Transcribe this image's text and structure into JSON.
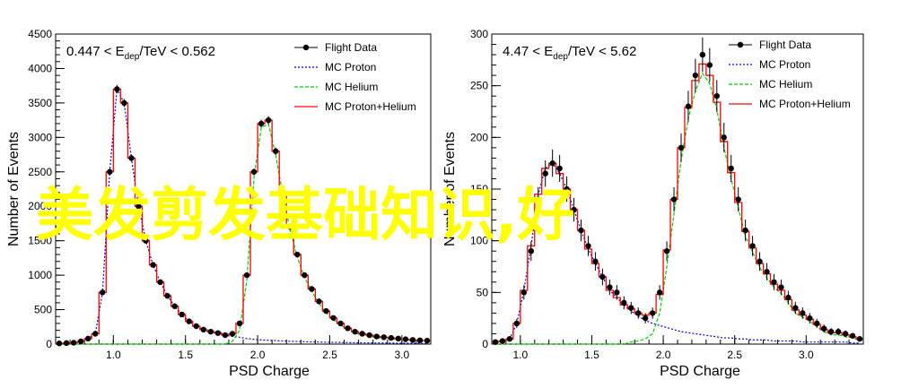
{
  "overlay": {
    "text": "美发剪发基础知识,好",
    "color": "#ffff00"
  },
  "colors": {
    "data": "#000000",
    "proton": "#0000cc",
    "helium": "#00cc00",
    "sum": "#ff0000"
  },
  "chart_data": [
    {
      "type": "line",
      "title": "",
      "range_label": {
        "pre": "0.447 < E",
        "sub": "dep",
        "post": "/TeV < 0.562"
      },
      "xlabel": "PSD Charge",
      "ylabel": "Number of Events",
      "xlim": [
        0.6,
        3.2
      ],
      "ylim": [
        0,
        4500
      ],
      "xticks": [
        1.0,
        1.5,
        2.0,
        2.5,
        3.0
      ],
      "xtick_labels": [
        "1.0",
        "1.5",
        "2.0",
        "2.5",
        "3.0"
      ],
      "yticks": [
        0,
        500,
        1000,
        1500,
        2000,
        2500,
        3000,
        3500,
        4000,
        4500
      ],
      "ytick_labels": [
        "0",
        "500",
        "1000",
        "1500",
        "2000",
        "2500",
        "3000",
        "3500",
        "4000",
        "4500"
      ],
      "legend_position": "top-right",
      "legend": [
        "Flight Data",
        "MC Proton",
        "MC Helium",
        "MC Proton+Helium"
      ],
      "x": [
        0.625,
        0.675,
        0.725,
        0.775,
        0.825,
        0.875,
        0.925,
        0.975,
        1.025,
        1.075,
        1.125,
        1.175,
        1.225,
        1.275,
        1.325,
        1.375,
        1.425,
        1.475,
        1.525,
        1.575,
        1.625,
        1.675,
        1.725,
        1.775,
        1.825,
        1.875,
        1.925,
        1.975,
        2.025,
        2.075,
        2.125,
        2.175,
        2.225,
        2.275,
        2.325,
        2.375,
        2.425,
        2.475,
        2.525,
        2.575,
        2.625,
        2.675,
        2.725,
        2.775,
        2.825,
        2.875,
        2.925,
        2.975,
        3.025,
        3.075,
        3.125,
        3.175
      ],
      "series": [
        {
          "name": "Flight Data",
          "style": "points",
          "values": [
            10,
            15,
            20,
            40,
            80,
            150,
            750,
            2500,
            3700,
            3500,
            2700,
            2000,
            1500,
            1150,
            900,
            700,
            550,
            430,
            330,
            260,
            210,
            180,
            160,
            130,
            150,
            300,
            1000,
            2500,
            3200,
            3250,
            2800,
            2200,
            1700,
            1300,
            1000,
            800,
            620,
            480,
            380,
            300,
            230,
            180,
            150,
            130,
            110,
            100,
            90,
            80,
            70,
            60,
            55,
            50
          ]
        },
        {
          "name": "MC Proton",
          "style": "dotted",
          "values": [
            10,
            15,
            20,
            40,
            80,
            150,
            750,
            2500,
            3700,
            3500,
            2700,
            2000,
            1500,
            1150,
            900,
            700,
            550,
            430,
            330,
            260,
            210,
            180,
            160,
            130,
            110,
            100,
            80,
            70,
            60,
            55,
            50,
            45,
            40,
            38,
            35,
            32,
            30,
            28,
            26,
            24,
            22,
            20,
            19,
            18,
            17,
            16,
            15,
            14,
            13,
            12,
            11,
            10
          ]
        },
        {
          "name": "MC Helium",
          "style": "dashed",
          "values": [
            0,
            0,
            0,
            0,
            0,
            0,
            0,
            0,
            0,
            0,
            0,
            0,
            0,
            0,
            0,
            0,
            0,
            0,
            0,
            0,
            0,
            0,
            0,
            0,
            40,
            200,
            920,
            2430,
            3140,
            3195,
            2750,
            2155,
            1660,
            1262,
            965,
            768,
            590,
            452,
            354,
            276,
            208,
            160,
            131,
            112,
            93,
            84,
            75,
            66,
            57,
            48,
            44,
            40
          ]
        },
        {
          "name": "MC Proton+Helium",
          "style": "step",
          "values": [
            10,
            15,
            20,
            40,
            80,
            150,
            750,
            2500,
            3700,
            3500,
            2700,
            2000,
            1500,
            1150,
            900,
            700,
            550,
            430,
            330,
            260,
            210,
            180,
            160,
            130,
            150,
            300,
            1000,
            2500,
            3200,
            3250,
            2800,
            2200,
            1700,
            1300,
            1000,
            800,
            620,
            480,
            380,
            300,
            230,
            180,
            150,
            130,
            110,
            100,
            90,
            80,
            70,
            60,
            55,
            50
          ]
        }
      ]
    },
    {
      "type": "line",
      "title": "",
      "range_label": {
        "pre": "4.47 < E",
        "sub": "dep",
        "post": "/TeV < 5.62"
      },
      "xlabel": "PSD Charge",
      "ylabel": "Number of Events",
      "xlim": [
        0.8,
        3.4
      ],
      "ylim": [
        0,
        300
      ],
      "xticks": [
        1.0,
        1.5,
        2.0,
        2.5,
        3.0
      ],
      "xtick_labels": [
        "1.0",
        "1.5",
        "2.0",
        "2.5",
        "3.0"
      ],
      "yticks": [
        0,
        50,
        100,
        150,
        200,
        250,
        300
      ],
      "ytick_labels": [
        "0",
        "50",
        "100",
        "150",
        "200",
        "250",
        "300"
      ],
      "legend_position": "top-right",
      "legend": [
        "Flight Data",
        "MC Proton",
        "MC Helium",
        "MC Proton+Helium"
      ],
      "x": [
        0.825,
        0.875,
        0.925,
        0.975,
        1.025,
        1.075,
        1.125,
        1.175,
        1.225,
        1.275,
        1.325,
        1.375,
        1.425,
        1.475,
        1.525,
        1.575,
        1.625,
        1.675,
        1.725,
        1.775,
        1.825,
        1.875,
        1.925,
        1.975,
        2.025,
        2.075,
        2.125,
        2.175,
        2.225,
        2.275,
        2.325,
        2.375,
        2.425,
        2.475,
        2.525,
        2.575,
        2.625,
        2.675,
        2.725,
        2.775,
        2.825,
        2.875,
        2.925,
        2.975,
        3.025,
        3.075,
        3.125,
        3.175,
        3.225,
        3.275,
        3.325,
        3.375
      ],
      "series": [
        {
          "name": "Flight Data",
          "style": "points",
          "values": [
            2,
            3,
            5,
            20,
            50,
            90,
            140,
            165,
            175,
            170,
            150,
            130,
            110,
            95,
            80,
            65,
            55,
            50,
            40,
            35,
            30,
            25,
            30,
            50,
            90,
            140,
            190,
            230,
            260,
            280,
            270,
            240,
            200,
            170,
            140,
            110,
            95,
            80,
            70,
            60,
            55,
            45,
            35,
            30,
            25,
            20,
            15,
            12,
            12,
            10,
            8,
            5
          ]
        },
        {
          "name": "MC Proton",
          "style": "dotted",
          "values": [
            2,
            3,
            5,
            20,
            52,
            95,
            145,
            170,
            175,
            165,
            150,
            130,
            110,
            92,
            78,
            65,
            52,
            45,
            38,
            32,
            27,
            23,
            20,
            18,
            16,
            14,
            12,
            11,
            10,
            9,
            8,
            7,
            6,
            6,
            5,
            5,
            4,
            4,
            4,
            3,
            3,
            3,
            3,
            2,
            2,
            2,
            2,
            2,
            2,
            2,
            1,
            1
          ]
        },
        {
          "name": "MC Helium",
          "style": "dashed",
          "values": [
            0,
            0,
            0,
            0,
            0,
            0,
            0,
            0,
            0,
            0,
            0,
            0,
            0,
            0,
            0,
            0,
            0,
            0,
            0,
            2,
            3,
            5,
            10,
            30,
            75,
            126,
            178,
            218,
            245,
            262,
            252,
            227,
            190,
            160,
            132,
            104,
            89,
            74,
            64,
            55,
            49,
            40,
            30,
            26,
            22,
            17,
            12,
            9,
            9,
            7,
            6,
            4
          ]
        },
        {
          "name": "MC Proton+Helium",
          "style": "step",
          "values": [
            2,
            3,
            5,
            20,
            52,
            95,
            145,
            170,
            175,
            165,
            150,
            130,
            110,
            92,
            78,
            65,
            52,
            45,
            38,
            34,
            30,
            28,
            30,
            48,
            91,
            140,
            190,
            229,
            255,
            271,
            260,
            234,
            196,
            166,
            137,
            109,
            93,
            78,
            68,
            58,
            52,
            43,
            33,
            28,
            24,
            19,
            14,
            11,
            11,
            9,
            7,
            5
          ]
        }
      ]
    }
  ]
}
